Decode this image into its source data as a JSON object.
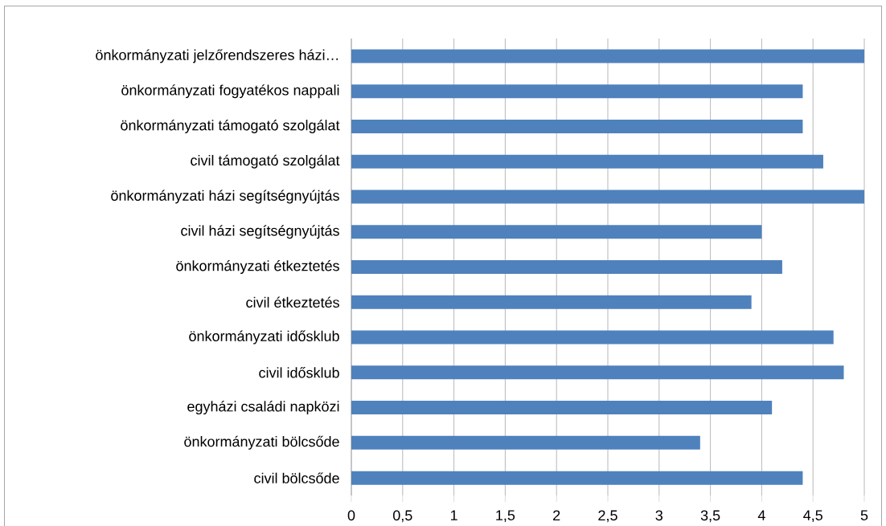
{
  "chart_data": {
    "type": "bar",
    "orientation": "horizontal",
    "categories": [
      "önkormányzati jelzőrendszeres házi…",
      "önkormányzati fogyatékos nappali",
      "önkormányzati támogató szolgálat",
      "civil támogató szolgálat",
      "önkormányzati házi segítségnyújtás",
      "civil házi segítségnyújtás",
      "önkormányzati étkeztetés",
      "civil étkeztetés",
      "önkormányzati idősklub",
      "civil idősklub",
      "egyházi családi napközi",
      "önkormányzati bölcsőde",
      "civil bölcsőde"
    ],
    "values": [
      5,
      4.4,
      4.4,
      4.6,
      5,
      4,
      4.2,
      3.9,
      4.7,
      4.8,
      4.1,
      3.4,
      4.4
    ],
    "color": "#4f81bd",
    "xlim": [
      0,
      5
    ],
    "xticks": [
      0,
      {
        "value": 0.5,
        "label": "0,5"
      },
      1,
      {
        "value": 1.5,
        "label": "1,5"
      },
      2,
      {
        "value": 2.5,
        "label": "2,5"
      },
      3,
      {
        "value": 3.5,
        "label": "3,5"
      },
      4,
      {
        "value": 4.5,
        "label": "4,5"
      },
      5
    ],
    "grid": "x"
  }
}
